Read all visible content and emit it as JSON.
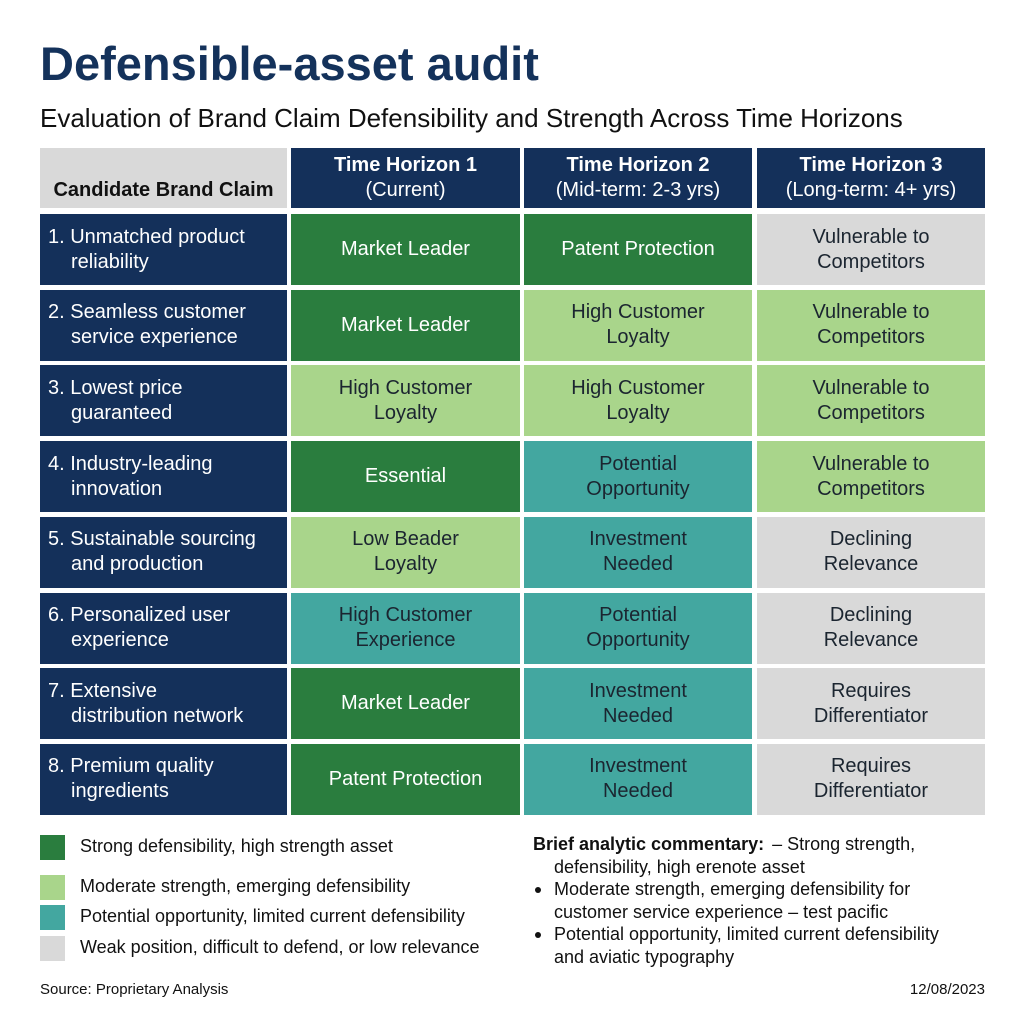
{
  "header": {
    "title": "Defensible-asset audit",
    "subtitle": "Evaluation of Brand Claim Defensibility and Strength Across Time Horizons"
  },
  "levels": {
    "strong": "#2a7d3e",
    "moderate": "#a9d58b",
    "potential": "#43a7a0",
    "weak": "#d9d9d9"
  },
  "table": {
    "columns": [
      {
        "lines": [
          "Candidate Brand Claim"
        ]
      },
      {
        "lines": [
          "Time Horizon 1",
          "(Current)"
        ]
      },
      {
        "lines": [
          "Time Horizon 2",
          "(Mid-term: 2-3 yrs)"
        ]
      },
      {
        "lines": [
          "Time Horizon 3",
          "(Long-term: 4+ yrs)"
        ]
      }
    ],
    "rows": [
      {
        "claim": [
          "1. Unmatched product",
          "reliability"
        ],
        "cells": [
          {
            "level": "strong",
            "lines": [
              "Market Leader"
            ]
          },
          {
            "level": "strong",
            "lines": [
              "Patent Protection"
            ]
          },
          {
            "level": "weak",
            "lines": [
              "Vulnerable to",
              "Competitors"
            ]
          }
        ]
      },
      {
        "claim": [
          "2. Seamless customer",
          "service experience"
        ],
        "cells": [
          {
            "level": "strong",
            "lines": [
              "Market Leader"
            ]
          },
          {
            "level": "moderate",
            "lines": [
              "High Customer",
              "Loyalty"
            ]
          },
          {
            "level": "moderate",
            "lines": [
              "Vulnerable to",
              "Competitors"
            ]
          }
        ]
      },
      {
        "claim": [
          "3. Lowest price",
          "guaranteed"
        ],
        "cells": [
          {
            "level": "moderate",
            "lines": [
              "High Customer",
              "Loyalty"
            ]
          },
          {
            "level": "moderate",
            "lines": [
              "High Customer",
              "Loyalty"
            ]
          },
          {
            "level": "moderate",
            "lines": [
              "Vulnerable to",
              "Competitors"
            ]
          }
        ]
      },
      {
        "claim": [
          "4. Industry-leading",
          "innovation"
        ],
        "cells": [
          {
            "level": "strong",
            "lines": [
              "Essential"
            ]
          },
          {
            "level": "potential",
            "lines": [
              "Potential",
              "Opportunity"
            ]
          },
          {
            "level": "moderate",
            "lines": [
              "Vulnerable to",
              "Competitors"
            ]
          }
        ]
      },
      {
        "claim": [
          "5. Sustainable sourcing",
          "and production"
        ],
        "cells": [
          {
            "level": "moderate",
            "lines": [
              "Low Beader",
              "Loyalty"
            ]
          },
          {
            "level": "potential",
            "lines": [
              "Investment",
              "Needed"
            ]
          },
          {
            "level": "weak",
            "lines": [
              "Declining",
              "Relevance"
            ]
          }
        ]
      },
      {
        "claim": [
          "6. Personalized user",
          "experience"
        ],
        "cells": [
          {
            "level": "potential",
            "lines": [
              "High Customer",
              "Experience"
            ]
          },
          {
            "level": "potential",
            "lines": [
              "Potential",
              "Opportunity"
            ]
          },
          {
            "level": "weak",
            "lines": [
              "Declining",
              "Relevance"
            ]
          }
        ]
      },
      {
        "claim": [
          "7. Extensive",
          "distribution network"
        ],
        "cells": [
          {
            "level": "strong",
            "lines": [
              "Market Leader"
            ]
          },
          {
            "level": "potential",
            "lines": [
              "Investment",
              "Needed"
            ]
          },
          {
            "level": "weak",
            "lines": [
              "Requires",
              "Differentiator"
            ]
          }
        ]
      },
      {
        "claim": [
          "8. Premium quality",
          "ingredients"
        ],
        "cells": [
          {
            "level": "strong",
            "lines": [
              "Patent Protection"
            ]
          },
          {
            "level": "potential",
            "lines": [
              "Investment",
              "Needed"
            ]
          },
          {
            "level": "weak",
            "lines": [
              "Requires",
              "Differentiator"
            ]
          }
        ]
      }
    ]
  },
  "legend": [
    {
      "level": "strong",
      "label": "Strong defensibility, high strength asset"
    },
    {
      "level": "moderate",
      "label": "Moderate strength, emerging defensibility"
    },
    {
      "level": "potential",
      "label": "Potential opportunity, limited current defensibility"
    },
    {
      "level": "weak",
      "label": "Weak position, difficult to defend, or low relevance"
    }
  ],
  "commentary": {
    "heading": "Brief analytic commentary:",
    "intro": [
      "– Strong strength,",
      "defensibility, high erenote asset"
    ],
    "bullets": [
      [
        "Moderate strength,  emerging defensibility for",
        "customer service experience – test pacific"
      ],
      [
        "Potential opportunity, limited current defensibility",
        "and aviatic typography"
      ]
    ]
  },
  "footer": {
    "source": "Source: Proprietary Analysis",
    "date": "12/08/2023"
  }
}
